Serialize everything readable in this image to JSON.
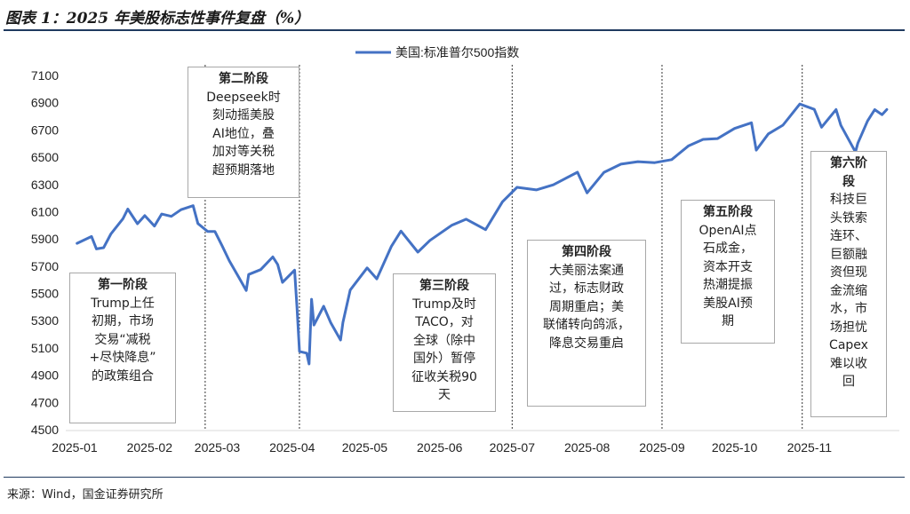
{
  "title": "图表 1：2025 年美股标志性事件复盘（%）",
  "source": "来源：Wind，国金证券研究所",
  "colors": {
    "line": "#4472c4",
    "rule": "#1f3a5f"
  },
  "chart_data": {
    "type": "line",
    "series": [
      {
        "name": "美国:标准普尔500指数",
        "values": [
          [
            "2025-01-02",
            5868
          ],
          [
            "2025-01-08",
            5918
          ],
          [
            "2025-01-10",
            5827
          ],
          [
            "2025-01-13",
            5836
          ],
          [
            "2025-01-16",
            5937
          ],
          [
            "2025-01-21",
            6049
          ],
          [
            "2025-01-23",
            6119
          ],
          [
            "2025-01-27",
            6012
          ],
          [
            "2025-01-30",
            6071
          ],
          [
            "2025-02-03",
            5994
          ],
          [
            "2025-02-06",
            6083
          ],
          [
            "2025-02-10",
            6066
          ],
          [
            "2025-02-14",
            6115
          ],
          [
            "2025-02-19",
            6144
          ],
          [
            "2025-02-21",
            6013
          ],
          [
            "2025-02-25",
            5955
          ],
          [
            "2025-02-28",
            5955
          ],
          [
            "2025-03-03",
            5850
          ],
          [
            "2025-03-06",
            5739
          ],
          [
            "2025-03-10",
            5615
          ],
          [
            "2025-03-13",
            5522
          ],
          [
            "2025-03-14",
            5639
          ],
          [
            "2025-03-19",
            5675
          ],
          [
            "2025-03-24",
            5768
          ],
          [
            "2025-03-26",
            5712
          ],
          [
            "2025-03-28",
            5581
          ],
          [
            "2025-04-02",
            5671
          ],
          [
            "2025-04-03",
            5397
          ],
          [
            "2025-04-04",
            5074
          ],
          [
            "2025-04-07",
            5062
          ],
          [
            "2025-04-08",
            4982
          ],
          [
            "2025-04-09",
            5457
          ],
          [
            "2025-04-10",
            5268
          ],
          [
            "2025-04-14",
            5406
          ],
          [
            "2025-04-17",
            5283
          ],
          [
            "2025-04-21",
            5158
          ],
          [
            "2025-04-22",
            5287
          ],
          [
            "2025-04-25",
            5525
          ],
          [
            "2025-05-02",
            5687
          ],
          [
            "2025-05-06",
            5607
          ],
          [
            "2025-05-12",
            5844
          ],
          [
            "2025-05-16",
            5958
          ],
          [
            "2025-05-23",
            5803
          ],
          [
            "2025-05-28",
            5889
          ],
          [
            "2025-06-06",
            6000
          ],
          [
            "2025-06-12",
            6045
          ],
          [
            "2025-06-20",
            5968
          ],
          [
            "2025-06-27",
            6173
          ],
          [
            "2025-07-03",
            6279
          ],
          [
            "2025-07-11",
            6260
          ],
          [
            "2025-07-18",
            6297
          ],
          [
            "2025-07-28",
            6390
          ],
          [
            "2025-08-01",
            6238
          ],
          [
            "2025-08-08",
            6389
          ],
          [
            "2025-08-15",
            6449
          ],
          [
            "2025-08-22",
            6467
          ],
          [
            "2025-08-29",
            6460
          ],
          [
            "2025-09-05",
            6482
          ],
          [
            "2025-09-12",
            6584
          ],
          [
            "2025-09-18",
            6631
          ],
          [
            "2025-09-24",
            6637
          ],
          [
            "2025-10-01",
            6711
          ],
          [
            "2025-10-08",
            6753
          ],
          [
            "2025-10-10",
            6552
          ],
          [
            "2025-10-15",
            6671
          ],
          [
            "2025-10-21",
            6735
          ],
          [
            "2025-10-28",
            6890
          ],
          [
            "2025-11-03",
            6851
          ],
          [
            "2025-11-06",
            6720
          ],
          [
            "2025-11-12",
            6850
          ],
          [
            "2025-11-14",
            6734
          ],
          [
            "2025-11-20",
            6538
          ],
          [
            "2025-11-21",
            6603
          ],
          [
            "2025-11-25",
            6766
          ],
          [
            "2025-11-28",
            6849
          ],
          [
            "2025-12-01",
            6812
          ],
          [
            "2025-12-03",
            6850
          ]
        ]
      }
    ],
    "x_ticks": [
      "2025-01",
      "2025-02",
      "2025-03",
      "2025-04",
      "2025-05",
      "2025-06",
      "2025-07",
      "2025-08",
      "2025-09",
      "2025-10",
      "2025-11"
    ],
    "ylim": [
      4500,
      7100
    ],
    "y_ticks": [
      4500,
      4700,
      4900,
      5100,
      5300,
      5500,
      5700,
      5900,
      6100,
      6300,
      6500,
      6700,
      6900,
      7100
    ],
    "legend_position": "top-center",
    "phase_boundaries": [
      "2025-02-24",
      "2025-04-04",
      "2025-07-01",
      "2025-09-01",
      "2025-10-29"
    ],
    "annotations": [
      {
        "heading": "第一阶段",
        "body": "Trump上任\n初期，市场\n交易“减税\n+尽快降息”\n的政策组合"
      },
      {
        "heading": "第二阶段",
        "body": "Deepseek时\n刻动摇美股\nAI地位，叠\n加对等关税\n超预期落地"
      },
      {
        "heading": "第三阶段",
        "body": "Trump及时\nTACO，对\n全球（除中\n国外）暂停\n征收关税90\n天"
      },
      {
        "heading": "第四阶段",
        "body": "大美丽法案通\n过，标志财政\n周期重启；美\n联储转向鸽派，\n降息交易重启"
      },
      {
        "heading": "第五阶段",
        "body": "OpenAI点\n石成金，\n资本开支\n热潮提振\n美股AI预\n期"
      },
      {
        "heading": "第六阶\n段",
        "body": "科技巨\n头铁索\n连环、\n巨额融\n资但现\n金流缩\n水，市\n场担忧\nCapex\n难以收\n回"
      }
    ]
  }
}
